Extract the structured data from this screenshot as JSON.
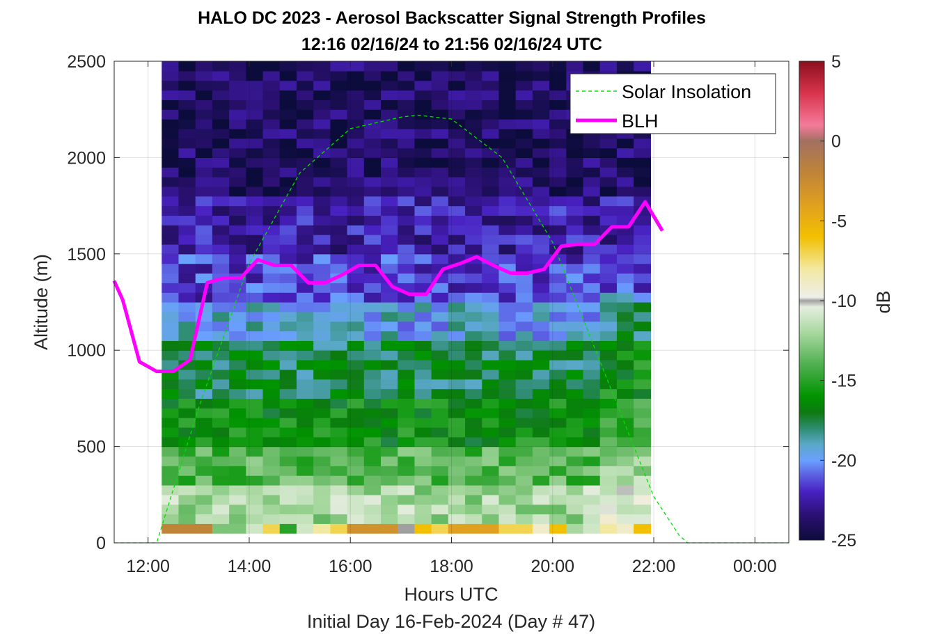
{
  "chart_data": {
    "type": "heatmap",
    "title": "HALO DC 2023 - Aerosol Backscatter Signal Strength Profiles",
    "subtitle": "12:16 02/16/24 to 21:56 02/16/24  UTC",
    "xlabel": "Hours UTC",
    "xlabel2": "Initial Day 16-Feb-2024 (Day # 47)",
    "ylabel": "Altitude (m)",
    "colorbar_label": "dB",
    "xlim": [
      11.33,
      24.67
    ],
    "ylim": [
      0,
      2500
    ],
    "x_ticks": [
      12,
      14,
      16,
      18,
      20,
      22,
      24
    ],
    "x_tick_labels": [
      "12:00",
      "14:00",
      "16:00",
      "18:00",
      "20:00",
      "22:00",
      "00:00"
    ],
    "y_ticks": [
      0,
      500,
      1000,
      1500,
      2000,
      2500
    ],
    "y_tick_labels": [
      "0",
      "500",
      "1000",
      "1500",
      "2000",
      "2500"
    ],
    "clim": [
      -25,
      5
    ],
    "c_ticks": [
      5,
      0,
      -5,
      -10,
      -15,
      -20,
      -25
    ],
    "c_tick_labels": [
      "5",
      "0",
      "-5",
      "-10",
      "-15",
      "-20",
      "-25"
    ],
    "grid": true,
    "legend_position": "top-right",
    "legend": [
      {
        "name": "Solar Insolation",
        "style": "dashed",
        "color": "#00e000"
      },
      {
        "name": "BLH",
        "style": "solid",
        "color": "#ff00ff"
      }
    ],
    "heatmap": {
      "x_start": 12.27,
      "x_end": 21.93,
      "bin_hours": 0.3333,
      "altitude_bins": [
        {
          "from": 0,
          "to": 50,
          "level": "missing"
        },
        {
          "from": 50,
          "to": 100,
          "level": "surface"
        },
        {
          "from": 100,
          "to": 300,
          "level": -12
        },
        {
          "from": 300,
          "to": 500,
          "level": -14
        },
        {
          "from": 500,
          "to": 750,
          "level": -16
        },
        {
          "from": 750,
          "to": 1050,
          "level": -17.5
        },
        {
          "from": 1050,
          "to": 1250,
          "level": -19.5
        },
        {
          "from": 1250,
          "to": 1500,
          "level": -21.5
        },
        {
          "from": 1500,
          "to": 1800,
          "level": -22.5
        },
        {
          "from": 1800,
          "to": 2500,
          "level": -24
        }
      ]
    },
    "series": [
      {
        "name": "BLH",
        "x": [
          11.33,
          11.5,
          11.83,
          12.17,
          12.5,
          12.83,
          13.17,
          13.5,
          13.83,
          14.17,
          14.5,
          14.83,
          15.17,
          15.5,
          15.83,
          16.17,
          16.5,
          16.83,
          17.17,
          17.5,
          17.83,
          18.17,
          18.5,
          18.83,
          19.17,
          19.5,
          19.83,
          20.17,
          20.5,
          20.83,
          21.17,
          21.5,
          21.83,
          22.17
        ],
        "y": [
          1360,
          1260,
          940,
          890,
          890,
          950,
          1350,
          1375,
          1375,
          1470,
          1440,
          1440,
          1350,
          1350,
          1390,
          1440,
          1440,
          1330,
          1290,
          1290,
          1420,
          1450,
          1485,
          1440,
          1400,
          1400,
          1420,
          1540,
          1550,
          1550,
          1640,
          1640,
          1770,
          1620
        ]
      },
      {
        "name": "Solar Insolation",
        "x": [
          11.33,
          12.0,
          12.17,
          13,
          14,
          15,
          16,
          17,
          17.33,
          18,
          19,
          20,
          21,
          22,
          22.5,
          22.67,
          24.67
        ],
        "y": [
          0,
          0,
          0,
          700,
          1450,
          1920,
          2150,
          2210,
          2220,
          2200,
          2000,
          1560,
          900,
          240,
          40,
          0,
          0
        ]
      }
    ],
    "colormap": [
      {
        "db": 5,
        "color": "#8b0f1e"
      },
      {
        "db": 3,
        "color": "#d8344c"
      },
      {
        "db": 1,
        "color": "#f57a9a"
      },
      {
        "db": 0,
        "color": "#a27060"
      },
      {
        "db": -2,
        "color": "#c08438"
      },
      {
        "db": -4,
        "color": "#e0a020"
      },
      {
        "db": -6,
        "color": "#f2c000"
      },
      {
        "db": -8,
        "color": "#f3e8a0"
      },
      {
        "db": -9.8,
        "color": "#eeeeea"
      },
      {
        "db": -10,
        "color": "#a0a0a0"
      },
      {
        "db": -10.4,
        "color": "#e6eedf"
      },
      {
        "db": -12,
        "color": "#a8d8a0"
      },
      {
        "db": -14,
        "color": "#50b050"
      },
      {
        "db": -16,
        "color": "#009400"
      },
      {
        "db": -17,
        "color": "#0c7a10"
      },
      {
        "db": -18,
        "color": "#2e8c70"
      },
      {
        "db": -19,
        "color": "#5aa8c8"
      },
      {
        "db": -20,
        "color": "#6aa0ff"
      },
      {
        "db": -21,
        "color": "#5a5ce0"
      },
      {
        "db": -22,
        "color": "#4820c0"
      },
      {
        "db": -23.5,
        "color": "#2a1070"
      },
      {
        "db": -25,
        "color": "#0c0c3c"
      }
    ]
  }
}
